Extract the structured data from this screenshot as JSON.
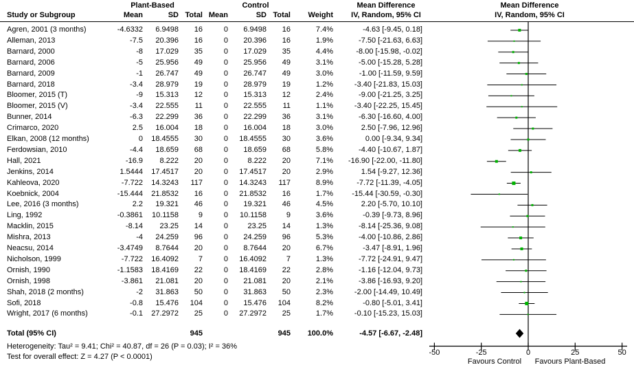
{
  "chart_data": {
    "type": "forest",
    "effect_measure": "Mean Difference",
    "method_label": "IV, Random, 95% CI",
    "header": {
      "group1": "Plant-Based",
      "group2": "Control",
      "md1": "Mean Difference",
      "md2": "Mean Difference",
      "study": "Study or Subgroup",
      "mean": "Mean",
      "sd": "SD",
      "total": "Total",
      "weight": "Weight",
      "iv": "IV, Random, 95% CI"
    },
    "studies": [
      {
        "name": "Agren, 2001 (3 months)",
        "mean1": "-4.6332",
        "sd1": "6.9498",
        "n1": "16",
        "mean2": "0",
        "sd2": "6.9498",
        "n2": "16",
        "weight": "7.4%",
        "ci": "-4.63 [-9.45, 0.18]"
      },
      {
        "name": "Alleman, 2013",
        "mean1": "-7.5",
        "sd1": "20.396",
        "n1": "16",
        "mean2": "0",
        "sd2": "20.396",
        "n2": "16",
        "weight": "1.9%",
        "ci": "-7.50 [-21.63, 6.63]"
      },
      {
        "name": "Barnard, 2000",
        "mean1": "-8",
        "sd1": "17.029",
        "n1": "35",
        "mean2": "0",
        "sd2": "17.029",
        "n2": "35",
        "weight": "4.4%",
        "ci": "-8.00 [-15.98, -0.02]"
      },
      {
        "name": "Barnard, 2006",
        "mean1": "-5",
        "sd1": "25.956",
        "n1": "49",
        "mean2": "0",
        "sd2": "25.956",
        "n2": "49",
        "weight": "3.1%",
        "ci": "-5.00 [-15.28, 5.28]"
      },
      {
        "name": "Barnard, 2009",
        "mean1": "-1",
        "sd1": "26.747",
        "n1": "49",
        "mean2": "0",
        "sd2": "26.747",
        "n2": "49",
        "weight": "3.0%",
        "ci": "-1.00 [-11.59, 9.59]"
      },
      {
        "name": "Barnard, 2018",
        "mean1": "-3.4",
        "sd1": "28.979",
        "n1": "19",
        "mean2": "0",
        "sd2": "28.979",
        "n2": "19",
        "weight": "1.2%",
        "ci": "-3.40 [-21.83, 15.03]"
      },
      {
        "name": "Bloomer, 2015 (T)",
        "mean1": "-9",
        "sd1": "15.313",
        "n1": "12",
        "mean2": "0",
        "sd2": "15.313",
        "n2": "12",
        "weight": "2.4%",
        "ci": "-9.00 [-21.25, 3.25]"
      },
      {
        "name": "Bloomer, 2015 (V)",
        "mean1": "-3.4",
        "sd1": "22.555",
        "n1": "11",
        "mean2": "0",
        "sd2": "22.555",
        "n2": "11",
        "weight": "1.1%",
        "ci": "-3.40 [-22.25, 15.45]"
      },
      {
        "name": "Bunner, 2014",
        "mean1": "-6.3",
        "sd1": "22.299",
        "n1": "36",
        "mean2": "0",
        "sd2": "22.299",
        "n2": "36",
        "weight": "3.1%",
        "ci": "-6.30 [-16.60, 4.00]"
      },
      {
        "name": "Crimarco, 2020",
        "mean1": "2.5",
        "sd1": "16.004",
        "n1": "18",
        "mean2": "0",
        "sd2": "16.004",
        "n2": "18",
        "weight": "3.0%",
        "ci": "2.50 [-7.96, 12.96]"
      },
      {
        "name": "Elkan, 2008 (12 months)",
        "mean1": "0",
        "sd1": "18.4555",
        "n1": "30",
        "mean2": "0",
        "sd2": "18.4555",
        "n2": "30",
        "weight": "3.6%",
        "ci": "0.00 [-9.34, 9.34]"
      },
      {
        "name": "Ferdowsian, 2010",
        "mean1": "-4.4",
        "sd1": "18.659",
        "n1": "68",
        "mean2": "0",
        "sd2": "18.659",
        "n2": "68",
        "weight": "5.8%",
        "ci": "-4.40 [-10.67, 1.87]"
      },
      {
        "name": "Hall, 2021",
        "mean1": "-16.9",
        "sd1": "8.222",
        "n1": "20",
        "mean2": "0",
        "sd2": "8.222",
        "n2": "20",
        "weight": "7.1%",
        "ci": "-16.90 [-22.00, -11.80]"
      },
      {
        "name": "Jenkins, 2014",
        "mean1": "1.5444",
        "sd1": "17.4517",
        "n1": "20",
        "mean2": "0",
        "sd2": "17.4517",
        "n2": "20",
        "weight": "2.9%",
        "ci": "1.54 [-9.27, 12.36]"
      },
      {
        "name": "Kahleova, 2020",
        "mean1": "-7.722",
        "sd1": "14.3243",
        "n1": "117",
        "mean2": "0",
        "sd2": "14.3243",
        "n2": "117",
        "weight": "8.9%",
        "ci": "-7.72 [-11.39, -4.05]"
      },
      {
        "name": "Koebnick, 2004",
        "mean1": "-15.444",
        "sd1": "21.8532",
        "n1": "16",
        "mean2": "0",
        "sd2": "21.8532",
        "n2": "16",
        "weight": "1.7%",
        "ci": "-15.44 [-30.59, -0.30]"
      },
      {
        "name": "Lee, 2016 (3 months)",
        "mean1": "2.2",
        "sd1": "19.321",
        "n1": "46",
        "mean2": "0",
        "sd2": "19.321",
        "n2": "46",
        "weight": "4.5%",
        "ci": "2.20 [-5.70, 10.10]"
      },
      {
        "name": "Ling, 1992",
        "mean1": "-0.3861",
        "sd1": "10.1158",
        "n1": "9",
        "mean2": "0",
        "sd2": "10.1158",
        "n2": "9",
        "weight": "3.6%",
        "ci": "-0.39 [-9.73, 8.96]"
      },
      {
        "name": "Macklin, 2015",
        "mean1": "-8.14",
        "sd1": "23.25",
        "n1": "14",
        "mean2": "0",
        "sd2": "23.25",
        "n2": "14",
        "weight": "1.3%",
        "ci": "-8.14 [-25.36, 9.08]"
      },
      {
        "name": "Mishra, 2013",
        "mean1": "-4",
        "sd1": "24.259",
        "n1": "96",
        "mean2": "0",
        "sd2": "24.259",
        "n2": "96",
        "weight": "5.3%",
        "ci": "-4.00 [-10.86, 2.86]"
      },
      {
        "name": "Neacsu, 2014",
        "mean1": "-3.4749",
        "sd1": "8.7644",
        "n1": "20",
        "mean2": "0",
        "sd2": "8.7644",
        "n2": "20",
        "weight": "6.7%",
        "ci": "-3.47 [-8.91, 1.96]"
      },
      {
        "name": "Nicholson, 1999",
        "mean1": "-7.722",
        "sd1": "16.4092",
        "n1": "7",
        "mean2": "0",
        "sd2": "16.4092",
        "n2": "7",
        "weight": "1.3%",
        "ci": "-7.72 [-24.91, 9.47]"
      },
      {
        "name": "Ornish, 1990",
        "mean1": "-1.1583",
        "sd1": "18.4169",
        "n1": "22",
        "mean2": "0",
        "sd2": "18.4169",
        "n2": "22",
        "weight": "2.8%",
        "ci": "-1.16 [-12.04, 9.73]"
      },
      {
        "name": "Ornish, 1998",
        "mean1": "-3.861",
        "sd1": "21.081",
        "n1": "20",
        "mean2": "0",
        "sd2": "21.081",
        "n2": "20",
        "weight": "2.1%",
        "ci": "-3.86 [-16.93, 9.20]"
      },
      {
        "name": "Shah, 2018 (2 months)",
        "mean1": "-2",
        "sd1": "31.863",
        "n1": "50",
        "mean2": "0",
        "sd2": "31.863",
        "n2": "50",
        "weight": "2.3%",
        "ci": "-2.00 [-14.49, 10.49]"
      },
      {
        "name": "Sofi, 2018",
        "mean1": "-0.8",
        "sd1": "15.476",
        "n1": "104",
        "mean2": "0",
        "sd2": "15.476",
        "n2": "104",
        "weight": "8.2%",
        "ci": "-0.80 [-5.01, 3.41]"
      },
      {
        "name": "Wright, 2017 (6 months)",
        "mean1": "-0.1",
        "sd1": "27.2972",
        "n1": "25",
        "mean2": "0",
        "sd2": "27.2972",
        "n2": "25",
        "weight": "1.7%",
        "ci": "-0.10 [-15.23, 15.03]"
      }
    ],
    "total": {
      "label": "Total (95% CI)",
      "n1": "945",
      "n2": "945",
      "weight": "100.0%",
      "ci": "-4.57 [-6.67, -2.48]"
    },
    "heterogeneity": "Heterogeneity: Tau² = 9.41; Chi² = 40.87, df = 26 (P = 0.03); I² = 36%",
    "overall_effect": "Test for overall effect: Z = 4.27 (P < 0.0001)",
    "axis": {
      "min": -50,
      "max": 50,
      "ticks": [
        -50,
        -25,
        0,
        25,
        50
      ],
      "favours_left": "Favours Control",
      "favours_right": "Favours Plant-Based"
    },
    "colors": {
      "marker": "#00b400",
      "line": "#000000",
      "diamond": "#000000",
      "text": "#000000"
    }
  }
}
